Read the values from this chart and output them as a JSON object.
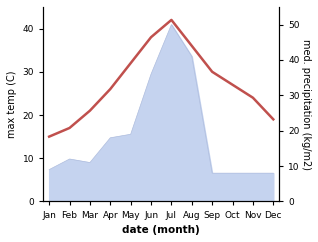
{
  "months": [
    "Jan",
    "Feb",
    "Mar",
    "Apr",
    "May",
    "Jun",
    "Jul",
    "Aug",
    "Sep",
    "Oct",
    "Nov",
    "Dec"
  ],
  "max_temp": [
    15,
    17,
    21,
    26,
    32,
    38,
    42,
    36,
    30,
    27,
    24,
    19
  ],
  "precipitation": [
    9,
    12,
    11,
    18,
    19,
    36,
    50,
    41,
    8,
    8,
    8,
    8
  ],
  "temp_color": "#c0504d",
  "precip_fill_color": "#c5d3ef",
  "precip_edge_color": "#b0bede",
  "temp_ylim": [
    0,
    45
  ],
  "precip_ylim": [
    0,
    55
  ],
  "temp_yticks": [
    0,
    10,
    20,
    30,
    40
  ],
  "precip_yticks": [
    0,
    10,
    20,
    30,
    40,
    50
  ],
  "ylabel_left": "max temp (C)",
  "ylabel_right": "med. precipitation (kg/m2)",
  "xlabel": "date (month)",
  "figsize": [
    3.18,
    2.42
  ],
  "dpi": 100
}
